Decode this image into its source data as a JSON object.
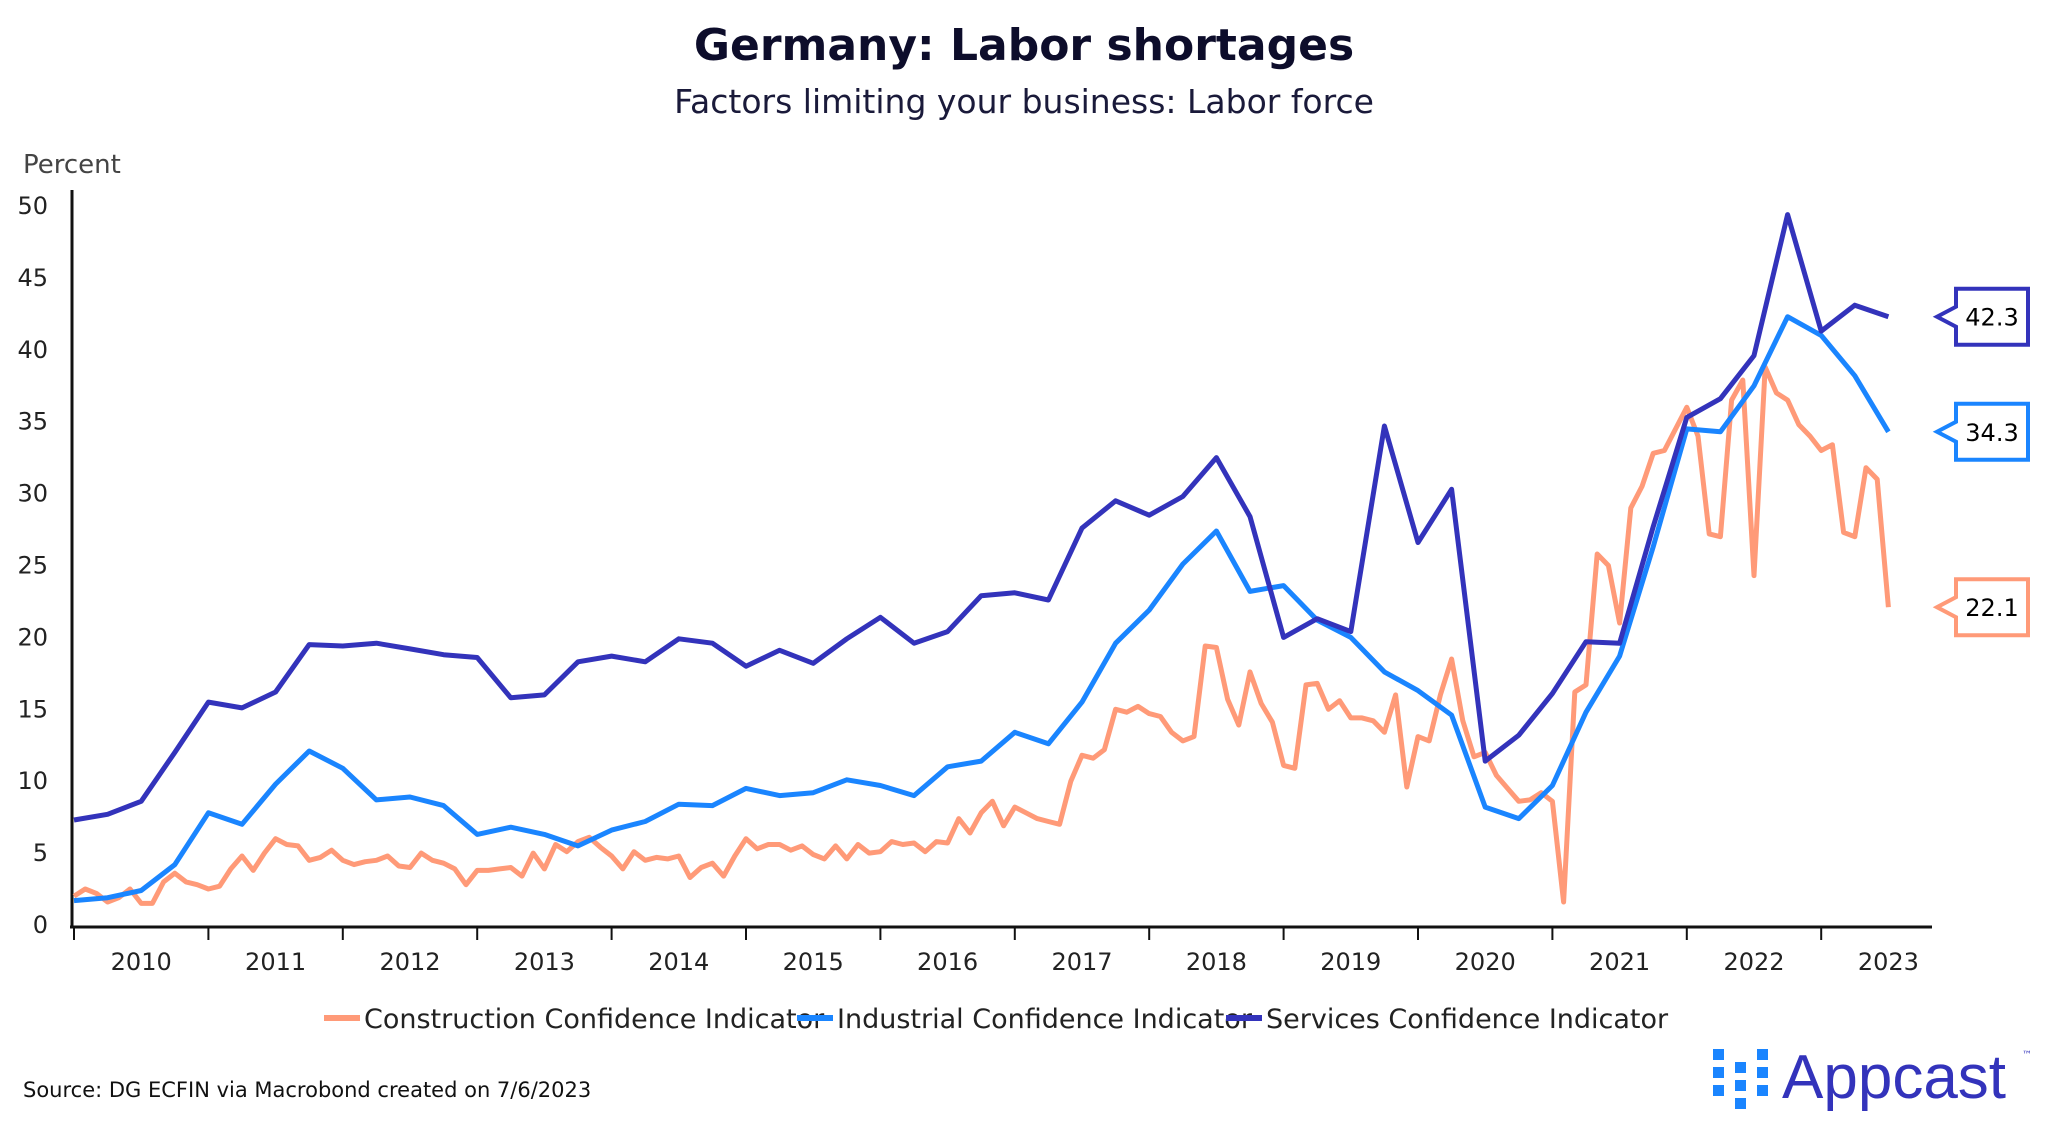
{
  "chart_data": {
    "type": "line",
    "title": "Germany: Labor shortages",
    "subtitle": "Factors limiting your business: Labor force",
    "ylabel": "Percent",
    "xlabel": "",
    "ylim": [
      0,
      50
    ],
    "yticks": [
      0,
      5,
      10,
      15,
      20,
      25,
      30,
      35,
      40,
      45,
      50
    ],
    "xlim": [
      "2010-01",
      "2023-12"
    ],
    "xticks": [
      "2010",
      "2011",
      "2012",
      "2013",
      "2014",
      "2015",
      "2016",
      "2017",
      "2018",
      "2019",
      "2020",
      "2021",
      "2022",
      "2023"
    ],
    "grid": false,
    "legend_position": "bottom",
    "series": [
      {
        "name": "Construction Confidence Indicator",
        "color": "#FF9A78",
        "start": "2010-01",
        "frequency": "monthly",
        "last_value_label": "22.1",
        "values": [
          2.0,
          2.5,
          2.2,
          1.6,
          1.9,
          2.5,
          1.5,
          1.5,
          3.0,
          3.6,
          3.0,
          2.8,
          2.5,
          2.7,
          3.9,
          4.8,
          3.8,
          5.0,
          6.0,
          5.6,
          5.5,
          4.5,
          4.7,
          5.2,
          4.5,
          4.2,
          4.4,
          4.5,
          4.8,
          4.1,
          4.0,
          5.0,
          4.5,
          4.3,
          3.9,
          2.8,
          3.8,
          3.8,
          3.9,
          4.0,
          3.4,
          5.0,
          3.9,
          5.6,
          5.1,
          5.8,
          6.1,
          5.4,
          4.8,
          3.9,
          5.1,
          4.5,
          4.7,
          4.6,
          4.8,
          3.3,
          4.0,
          4.3,
          3.4,
          4.8,
          6.0,
          5.3,
          5.6,
          5.6,
          5.2,
          5.5,
          4.9,
          4.6,
          5.5,
          4.6,
          5.6,
          5.0,
          5.1,
          5.8,
          5.6,
          5.7,
          5.1,
          5.8,
          5.7,
          7.4,
          6.4,
          7.8,
          8.6,
          6.9,
          8.2,
          7.8,
          7.4,
          7.2,
          7.0,
          10.0,
          11.8,
          11.6,
          12.2,
          15.0,
          14.8,
          15.2,
          14.7,
          14.5,
          13.4,
          12.8,
          13.1,
          19.4,
          19.3,
          15.7,
          13.9,
          17.6,
          15.4,
          14.1,
          11.1,
          10.9,
          16.7,
          16.8,
          15.0,
          15.6,
          14.4,
          14.4,
          14.2,
          13.4,
          16.0,
          9.6,
          13.1,
          12.8,
          16.0,
          18.5,
          14.2,
          11.7,
          12.0,
          10.4,
          9.5,
          8.6,
          8.7,
          9.2,
          8.6,
          1.6,
          16.2,
          16.7,
          25.8,
          25.0,
          21.0,
          29.0,
          30.5,
          32.8,
          33.0,
          34.5,
          36.0,
          34.0,
          27.2,
          27.0,
          36.5,
          37.9,
          24.3,
          38.8,
          37.0,
          36.5,
          34.8,
          34.0,
          33.0,
          33.4,
          27.3,
          27.0,
          31.8,
          31.0,
          22.1
        ]
      },
      {
        "name": "Industrial Confidence Indicator",
        "color": "#1A85FF",
        "start": "2010-01",
        "frequency": "quarterly",
        "last_value_label": "34.3",
        "values": [
          1.7,
          1.9,
          2.4,
          4.2,
          7.8,
          7.0,
          9.8,
          12.1,
          10.9,
          8.7,
          8.9,
          8.3,
          6.3,
          6.8,
          6.3,
          5.5,
          6.6,
          7.2,
          8.4,
          8.3,
          9.5,
          9.0,
          9.2,
          10.1,
          9.7,
          9.0,
          11.0,
          11.4,
          13.4,
          12.6,
          15.5,
          19.6,
          21.9,
          25.1,
          27.4,
          23.2,
          23.6,
          21.2,
          20.0,
          17.6,
          16.3,
          14.6,
          8.2,
          7.4,
          9.7,
          14.8,
          18.7,
          26.3,
          34.5,
          34.3,
          37.5,
          42.3,
          41.0,
          38.2,
          34.3
        ]
      },
      {
        "name": "Services Confidence Indicator",
        "color": "#3333BB",
        "start": "2010-01",
        "frequency": "quarterly",
        "last_value_label": "42.3",
        "values": [
          7.3,
          7.7,
          8.6,
          12.0,
          15.5,
          15.1,
          16.2,
          19.5,
          19.4,
          19.6,
          19.2,
          18.8,
          18.6,
          15.8,
          16.0,
          18.3,
          18.7,
          18.3,
          19.9,
          19.6,
          18.0,
          19.1,
          18.2,
          19.9,
          21.4,
          19.6,
          20.4,
          22.9,
          23.1,
          22.6,
          27.6,
          29.5,
          28.5,
          29.8,
          32.5,
          28.4,
          20.0,
          21.3,
          20.4,
          34.7,
          26.6,
          30.3,
          11.4,
          13.2,
          16.1,
          19.7,
          19.6,
          27.7,
          35.3,
          36.6,
          39.6,
          49.4,
          41.3,
          43.1,
          42.3
        ]
      }
    ]
  },
  "footer": {
    "source": "Source: DG ECFIN via Macrobond created on 7/6/2023",
    "logo_text": "Appcast",
    "logo_tm": "™"
  }
}
